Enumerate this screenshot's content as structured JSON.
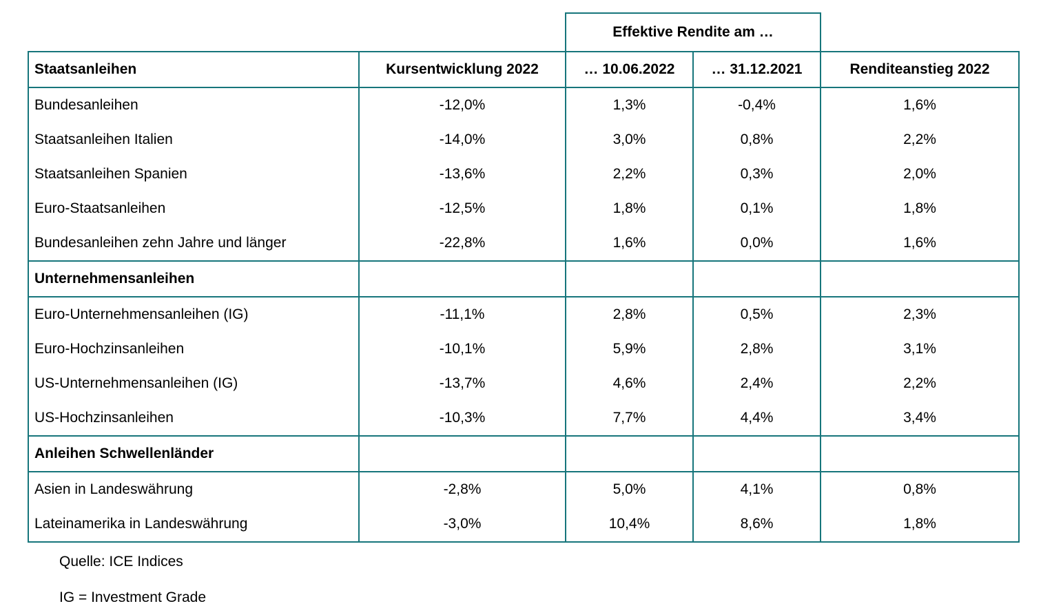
{
  "colors": {
    "border_teal": "#16757B",
    "text": "#000000",
    "background": "#FFFFFF"
  },
  "chart_data": {
    "type": "table",
    "spanner_header": "Effektive Rendite am …",
    "columns": [
      "Staatsanleihen",
      "Kursentwicklung 2022",
      "… 10.06.2022",
      "… 31.12.2021",
      "Renditeanstieg 2022"
    ],
    "rows": [
      {
        "type": "data",
        "label": "Bundesanleihen",
        "values": [
          "-12,0%",
          "1,3%",
          "-0,4%",
          "1,6%"
        ]
      },
      {
        "type": "data",
        "label": "Staatsanleihen Italien",
        "values": [
          "-14,0%",
          "3,0%",
          "0,8%",
          "2,2%"
        ]
      },
      {
        "type": "data",
        "label": "Staatsanleihen Spanien",
        "values": [
          "-13,6%",
          "2,2%",
          "0,3%",
          "2,0%"
        ]
      },
      {
        "type": "data",
        "label": "Euro-Staatsanleihen",
        "values": [
          "-12,5%",
          "1,8%",
          "0,1%",
          "1,8%"
        ]
      },
      {
        "type": "data",
        "label": "Bundesanleihen zehn Jahre und länger",
        "values": [
          "-22,8%",
          "1,6%",
          "0,0%",
          "1,6%"
        ]
      },
      {
        "type": "section",
        "label": "Unternehmensanleihen",
        "values": [
          "",
          "",
          "",
          ""
        ]
      },
      {
        "type": "data",
        "label": "Euro-Unternehmensanleihen (IG)",
        "values": [
          "-11,1%",
          "2,8%",
          "0,5%",
          "2,3%"
        ]
      },
      {
        "type": "data",
        "label": "Euro-Hochzinsanleihen",
        "values": [
          "-10,1%",
          "5,9%",
          "2,8%",
          "3,1%"
        ]
      },
      {
        "type": "data",
        "label": "US-Unternehmensanleihen (IG)",
        "values": [
          "-13,7%",
          "4,6%",
          "2,4%",
          "2,2%"
        ]
      },
      {
        "type": "data",
        "label": "US-Hochzinsanleihen",
        "values": [
          "-10,3%",
          "7,7%",
          "4,4%",
          "3,4%"
        ]
      },
      {
        "type": "section",
        "label": "Anleihen Schwellenländer",
        "values": [
          "",
          "",
          "",
          ""
        ]
      },
      {
        "type": "data",
        "label": "Asien in Landeswährung",
        "values": [
          "-2,8%",
          "5,0%",
          "4,1%",
          "0,8%"
        ]
      },
      {
        "type": "data",
        "label": "Lateinamerika in Landeswährung",
        "values": [
          "-3,0%",
          "10,4%",
          "8,6%",
          "1,8%"
        ]
      }
    ],
    "footnotes": [
      "Quelle: ICE Indices",
      "IG = Investment Grade"
    ]
  }
}
